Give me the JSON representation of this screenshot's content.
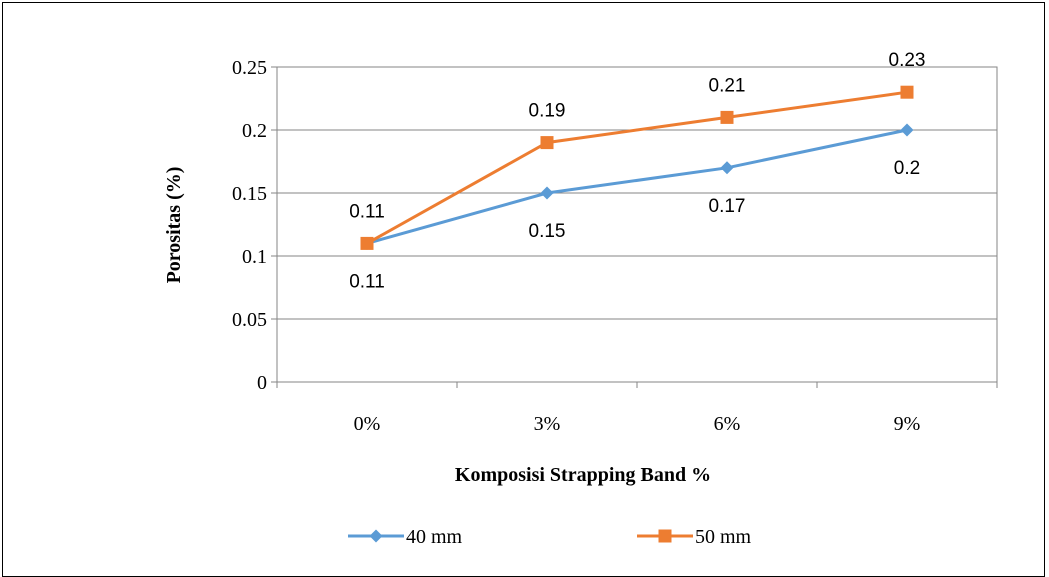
{
  "chart_data": {
    "type": "line",
    "categories": [
      "0%",
      "3%",
      "6%",
      "9%"
    ],
    "series": [
      {
        "name": "40 mm",
        "values": [
          0.11,
          0.15,
          0.17,
          0.2
        ],
        "labels": [
          "0.11",
          "0.15",
          "0.17",
          "0.2"
        ],
        "color": "#5B9BD5",
        "marker": "diamond"
      },
      {
        "name": "50 mm",
        "values": [
          0.11,
          0.19,
          0.21,
          0.23
        ],
        "labels": [
          "0.11",
          "0.19",
          "0.21",
          "0.23"
        ],
        "color": "#ED7D31",
        "marker": "square"
      }
    ],
    "xlabel": "Komposisi Strapping Band %",
    "ylabel": "Porositas (%)",
    "ylim": [
      0,
      0.25
    ],
    "yticks": [
      "0",
      "0.05",
      "0.1",
      "0.15",
      "0.2",
      "0.25"
    ],
    "grid": true,
    "legend_position": "bottom"
  }
}
